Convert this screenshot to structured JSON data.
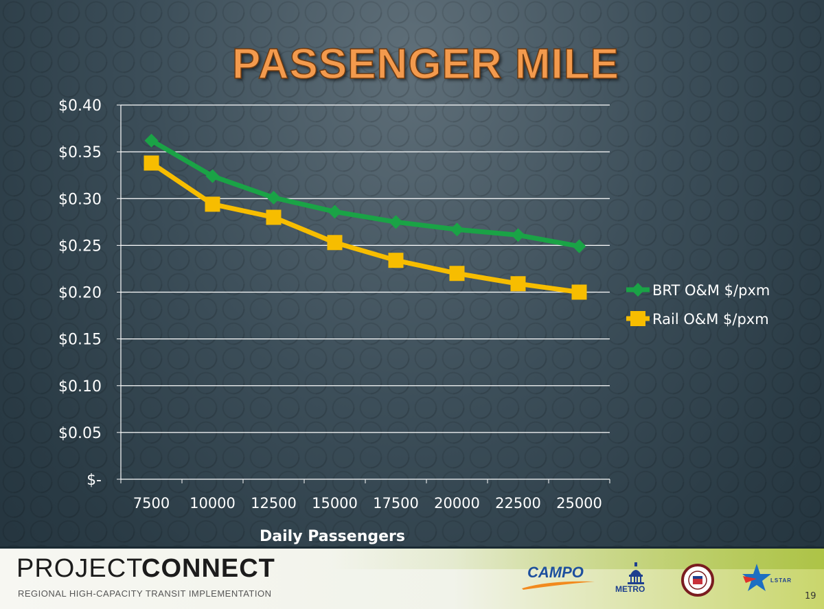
{
  "slide": {
    "title": "PASSENGER MILE",
    "page_number": "19"
  },
  "footer": {
    "brand_part1": "PROJECT",
    "brand_part2": "CONNECT",
    "tagline": "REGIONAL HIGH-CAPACITY TRANSIT IMPLEMENTATION",
    "logos": [
      {
        "name": "campo",
        "text": "CAMPO"
      },
      {
        "name": "metro",
        "text": "METRO"
      },
      {
        "name": "city-of-austin",
        "text": ""
      },
      {
        "name": "lstar",
        "text": "LSTAR"
      }
    ]
  },
  "colors": {
    "brt": "#1aa346",
    "rail": "#f7bd00",
    "grid": "#ffffff",
    "title": "#f39a4d"
  },
  "chart_data": {
    "type": "line",
    "title": "PASSENGER MILE",
    "xlabel": "Daily Passengers",
    "ylabel": "",
    "categories": [
      "7500",
      "10000",
      "12500",
      "15000",
      "17500",
      "20000",
      "22500",
      "25000"
    ],
    "y_ticks": [
      "$-",
      "$0.05",
      "$0.10",
      "$0.15",
      "$0.20",
      "$0.25",
      "$0.30",
      "$0.35",
      "$0.40"
    ],
    "ylim": [
      0,
      0.4
    ],
    "grid": true,
    "legend_position": "right",
    "series": [
      {
        "name": "BRT O&M $/pxm",
        "marker": "diamond",
        "color": "#1aa346",
        "values": [
          0.362,
          0.324,
          0.301,
          0.286,
          0.275,
          0.267,
          0.261,
          0.249
        ]
      },
      {
        "name": "Rail O&M $/pxm",
        "marker": "square",
        "color": "#f7bd00",
        "values": [
          0.338,
          0.294,
          0.28,
          0.253,
          0.234,
          0.22,
          0.209,
          0.2
        ]
      }
    ]
  }
}
